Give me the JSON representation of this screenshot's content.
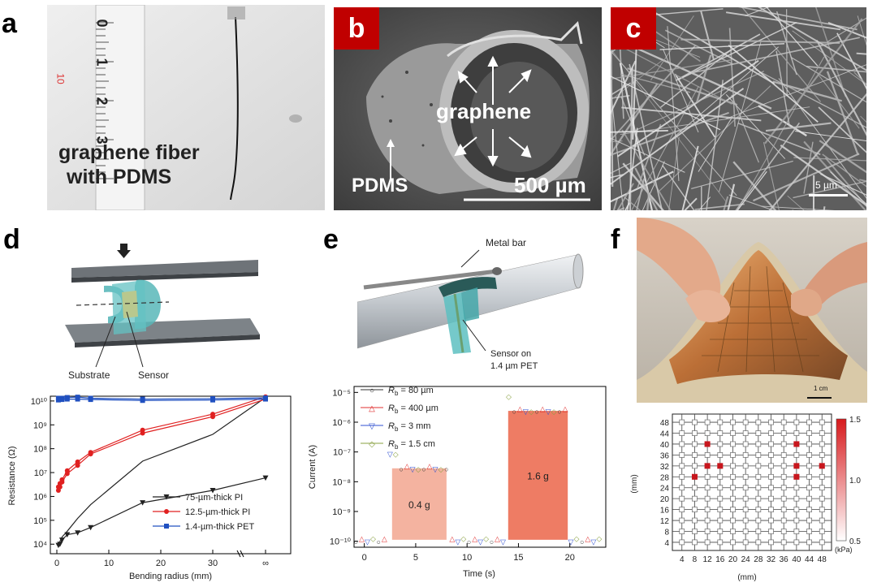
{
  "panel_labels": {
    "a": "a",
    "b": "b",
    "c": "c",
    "d": "d",
    "e": "e",
    "f": "f"
  },
  "panel_a": {
    "text_line1": "graphene fiber",
    "text_line2": "with PDMS",
    "ruler_marks": [
      "0",
      "1",
      "2",
      "3"
    ],
    "ruler_red": "10"
  },
  "panel_b": {
    "inner_label": "graphene",
    "outer_label": "PDMS",
    "scale": "500 µm"
  },
  "panel_c": {
    "scale": "5 µm"
  },
  "panel_d": {
    "diagram_labels": {
      "substrate": "Substrate",
      "sensor": "Sensor"
    },
    "chart_data": {
      "type": "line",
      "xlabel": "Bending radius (mm)",
      "ylabel": "Resistance (Ω)",
      "x_ticks": [
        "0",
        "10",
        "20",
        "30",
        "∞"
      ],
      "y_ticks": [
        "10⁴",
        "10⁵",
        "10⁶",
        "10⁷",
        "10⁸",
        "10⁹",
        "10¹⁰"
      ],
      "y_log_range": [
        3.6,
        10.2
      ],
      "series": [
        {
          "name": "75-µm-thick PI",
          "color": "#222222",
          "marker": "triangle",
          "x": [
            0.3,
            0.6,
            1,
            2,
            4,
            6.5,
            16.5,
            30,
            "inf"
          ],
          "y_low": [
            9000.0,
            10000.0,
            15000.0,
            25000.0,
            30000.0,
            50000.0,
            550000.0,
            1800000.0,
            6000000.0
          ],
          "y_high": [
            10000.0,
            13000.0,
            20000.0,
            35000.0,
            120000.0,
            450000.0,
            30000000.0,
            400000000.0,
            14000000000.0
          ]
        },
        {
          "name": "12.5-µm-thick PI",
          "color": "#e02020",
          "marker": "circle",
          "x": [
            0.3,
            0.6,
            1,
            2,
            4,
            6.5,
            16.5,
            30,
            "inf"
          ],
          "y_low": [
            1800000.0,
            2500000.0,
            4000000.0,
            9000000.0,
            20000000.0,
            60000000.0,
            450000000.0,
            2200000000.0,
            12000000000.0
          ],
          "y_high": [
            2500000.0,
            3500000.0,
            5000000.0,
            12000000.0,
            28000000.0,
            70000000.0,
            600000000.0,
            2800000000.0,
            15000000000.0
          ]
        },
        {
          "name": "1.4-µm-thick PET",
          "color": "#2050c0",
          "marker": "square",
          "x": [
            0.3,
            1,
            2,
            4,
            6.5,
            16.5,
            30,
            "inf"
          ],
          "y_low": [
            11000000000.0,
            11500000000.0,
            12000000000.0,
            12000000000.0,
            11500000000.0,
            10500000000.0,
            11000000000.0,
            12000000000.0
          ],
          "y_high": [
            13000000000.0,
            13000000000.0,
            14000000000.0,
            14500000000.0,
            13000000000.0,
            12000000000.0,
            12500000000.0,
            13500000000.0
          ]
        }
      ]
    }
  },
  "panel_e": {
    "diagram_labels": {
      "metal_bar": "Metal bar",
      "sensor_l1": "Sensor on",
      "sensor_l2": "1.4 µm PET"
    },
    "chart_data": {
      "type": "area",
      "xlabel": "Time (s)",
      "ylabel": "Current (A)",
      "x_ticks": [
        "0",
        "5",
        "10",
        "15",
        "20"
      ],
      "x_range": [
        -1,
        23.5
      ],
      "y_ticks": [
        "10⁻¹⁰",
        "10⁻⁹",
        "10⁻⁸",
        "10⁻⁷",
        "10⁻⁶",
        "10⁻⁵"
      ],
      "y_log_range": [
        -10.2,
        -4.8
      ],
      "pulses": [
        {
          "label": "0.4 g",
          "start": 2.7,
          "end": 8.0,
          "level_exp": -7.55,
          "color": "#f4b3a0"
        },
        {
          "label": "1.6 g",
          "start": 14.0,
          "end": 19.8,
          "level_exp": -5.62,
          "color": "#ee7c64"
        }
      ],
      "baseline_exp": -9.95,
      "legend": [
        {
          "sym": "R",
          "sub": "b",
          "value": "= 80 µm",
          "color": "#333333",
          "marker": "○"
        },
        {
          "sym": "R",
          "sub": "b",
          "value": "= 400 µm",
          "color": "#e03030",
          "marker": "△"
        },
        {
          "sym": "R",
          "sub": "b",
          "value": "= 3 mm",
          "color": "#3050d0",
          "marker": "▽"
        },
        {
          "sym": "R",
          "sub": "b",
          "value": "= 1.5 cm",
          "color": "#88a040",
          "marker": "◇"
        }
      ]
    }
  },
  "panel_f": {
    "photo_scale": "1 cm",
    "chart_data": {
      "type": "heatmap",
      "xlabel": "(mm)",
      "ylabel": "(mm)",
      "x_ticks": [
        "4",
        "8",
        "12",
        "16",
        "20",
        "24",
        "28",
        "32",
        "36",
        "40",
        "44",
        "48"
      ],
      "y_ticks": [
        "48",
        "44",
        "40",
        "36",
        "32",
        "28",
        "24",
        "20",
        "16",
        "12",
        "8",
        "4"
      ],
      "active_cells": [
        {
          "x": 12,
          "y": 40
        },
        {
          "x": 40,
          "y": 40
        },
        {
          "x": 12,
          "y": 32
        },
        {
          "x": 16,
          "y": 32
        },
        {
          "x": 40,
          "y": 32
        },
        {
          "x": 48,
          "y": 32
        },
        {
          "x": 8,
          "y": 28
        },
        {
          "x": 40,
          "y": 28
        }
      ],
      "colorbar": {
        "ticks": [
          "1.5",
          "1.0",
          "0.5"
        ],
        "unit": "(kPa)",
        "range": [
          0.5,
          1.5
        ]
      }
    }
  }
}
